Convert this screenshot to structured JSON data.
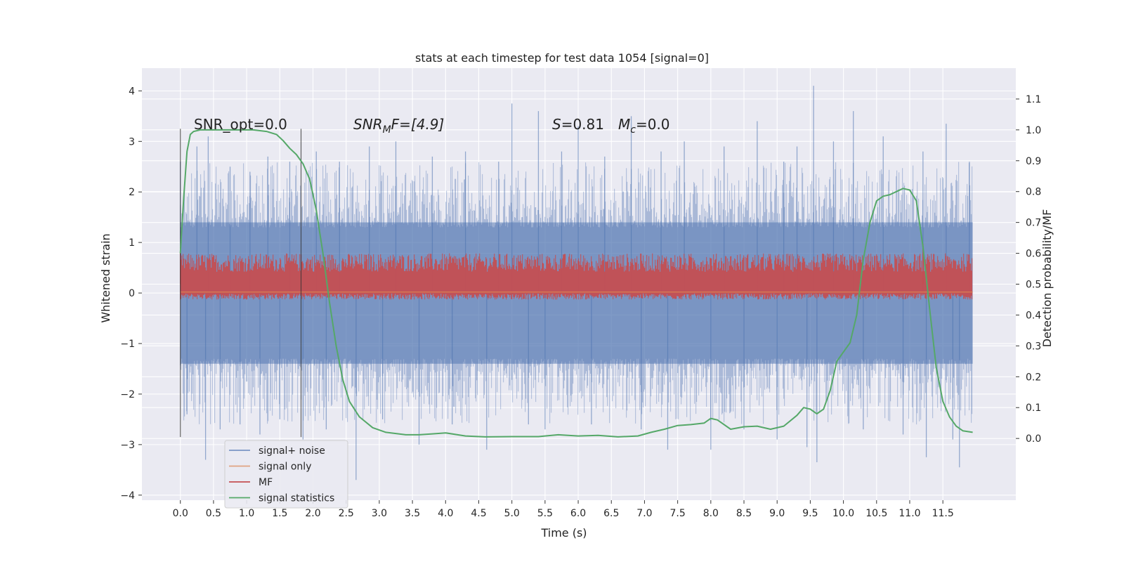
{
  "chart_data": {
    "type": "line",
    "title": "stats at each timestep for test data 1054 [signal=0]",
    "xlabel": "Time (s)",
    "ylabel": "Whitened strain",
    "ylabel_right": "Detection probability/MF",
    "xlim": [
      -0.58,
      12.6
    ],
    "ylim": [
      -4.1,
      4.45
    ],
    "ylim_right": [
      -0.2,
      1.2
    ],
    "x_ticks": [
      "0.0",
      "0.5",
      "1.0",
      "1.5",
      "2.0",
      "2.5",
      "3.0",
      "3.5",
      "4.0",
      "4.5",
      "5.0",
      "5.5",
      "6.0",
      "6.5",
      "7.0",
      "7.5",
      "8.0",
      "8.5",
      "9.0",
      "9.5",
      "10.0",
      "10.5",
      "11.0",
      "11.5"
    ],
    "y_ticks_left": [
      "−4",
      "−3",
      "−2",
      "−1",
      "0",
      "1",
      "2",
      "3",
      "4"
    ],
    "y_ticks_right": [
      "0.0",
      "0.1",
      "0.2",
      "0.3",
      "0.4",
      "0.5",
      "0.6",
      "0.7",
      "0.8",
      "0.9",
      "1.0",
      "1.1"
    ],
    "grid": true,
    "background": "#eaeaf2",
    "legend": {
      "placement": "lower-left",
      "entries": [
        {
          "label": "signal+ noise",
          "color": "#4c72b0"
        },
        {
          "label": "signal only",
          "color": "#dd8452"
        },
        {
          "label": "MF",
          "color": "#c44e52"
        },
        {
          "label": "signal statistics",
          "color": "#55a868"
        }
      ]
    },
    "annotations": {
      "snr_opt": "SNR_opt=0.0",
      "snr_mf_main": "SNR",
      "snr_mf_sub": "M",
      "snr_mf_rest": "F=[4.9]",
      "s_symbol": "S",
      "s_value": "=0.81",
      "mc_main": "M",
      "mc_sub": "c",
      "mc_value": "=0.0"
    },
    "vertical_lines_x": [
      0.0,
      1.82
    ],
    "series": [
      {
        "name": "signal+ noise",
        "color": "#4c72b0",
        "description_band": [
          -1.4,
          1.4
        ],
        "spikes": [
          [
            0.0,
            2.6
          ],
          [
            0.1,
            -2.4
          ],
          [
            0.25,
            2.9
          ],
          [
            0.38,
            -3.3
          ],
          [
            0.42,
            3.1
          ],
          [
            0.6,
            -2.7
          ],
          [
            0.75,
            2.5
          ],
          [
            0.9,
            -2.6
          ],
          [
            1.05,
            2.4
          ],
          [
            1.2,
            -2.8
          ],
          [
            1.32,
            2.7
          ],
          [
            1.5,
            -2.5
          ],
          [
            1.65,
            2.6
          ],
          [
            1.85,
            -2.9
          ],
          [
            2.05,
            2.8
          ],
          [
            2.2,
            -2.7
          ],
          [
            2.4,
            2.6
          ],
          [
            2.65,
            -3.7
          ],
          [
            2.85,
            2.9
          ],
          [
            3.05,
            -2.5
          ],
          [
            3.25,
            3.0
          ],
          [
            3.6,
            -3.0
          ],
          [
            3.8,
            2.7
          ],
          [
            4.1,
            -2.6
          ],
          [
            4.3,
            2.8
          ],
          [
            4.62,
            -3.1
          ],
          [
            4.8,
            2.6
          ],
          [
            5.0,
            3.75
          ],
          [
            5.25,
            -2.6
          ],
          [
            5.4,
            3.6
          ],
          [
            5.5,
            -2.7
          ],
          [
            5.75,
            2.8
          ],
          [
            6.0,
            3.3
          ],
          [
            6.2,
            -2.6
          ],
          [
            6.4,
            2.7
          ],
          [
            6.8,
            3.5
          ],
          [
            6.95,
            -2.7
          ],
          [
            7.25,
            2.8
          ],
          [
            7.35,
            -3.1
          ],
          [
            7.6,
            3.0
          ],
          [
            8.0,
            -3.1
          ],
          [
            8.2,
            2.9
          ],
          [
            8.5,
            -2.7
          ],
          [
            8.7,
            3.4
          ],
          [
            9.0,
            -2.9
          ],
          [
            9.1,
            2.6
          ],
          [
            9.3,
            2.9
          ],
          [
            9.45,
            -3.05
          ],
          [
            9.55,
            4.1
          ],
          [
            9.6,
            -3.35
          ],
          [
            9.85,
            3.0
          ],
          [
            10.15,
            3.6
          ],
          [
            10.3,
            -2.7
          ],
          [
            10.6,
            3.1
          ],
          [
            10.9,
            -2.8
          ],
          [
            11.2,
            2.8
          ],
          [
            11.25,
            -3.25
          ],
          [
            11.55,
            3.35
          ],
          [
            11.65,
            -2.9
          ],
          [
            11.75,
            -3.45
          ],
          [
            11.9,
            2.6
          ]
        ]
      },
      {
        "name": "signal only",
        "color": "#dd8452",
        "x": [
          0.0,
          11.95
        ],
        "y": [
          0.02,
          0.02
        ]
      },
      {
        "name": "MF",
        "color": "#c44e52",
        "band_right": [
          0.45,
          0.57
        ],
        "center_right": 0.5,
        "spikes_right": [
          [
            0.0,
            0.62
          ],
          [
            11.2,
            0.63
          ]
        ]
      },
      {
        "name": "signal statistics",
        "color": "#55a868",
        "x": [
          0.0,
          0.05,
          0.1,
          0.15,
          0.2,
          0.3,
          0.5,
          0.8,
          1.1,
          1.3,
          1.45,
          1.55,
          1.65,
          1.75,
          1.85,
          1.95,
          2.05,
          2.15,
          2.25,
          2.35,
          2.45,
          2.55,
          2.7,
          2.9,
          3.1,
          3.4,
          3.6,
          3.8,
          4.0,
          4.3,
          4.6,
          5.0,
          5.4,
          5.7,
          6.0,
          6.3,
          6.6,
          6.9,
          7.1,
          7.3,
          7.5,
          7.7,
          7.9,
          8.0,
          8.1,
          8.3,
          8.5,
          8.7,
          8.9,
          9.1,
          9.3,
          9.4,
          9.5,
          9.6,
          9.7,
          9.8,
          9.9,
          10.0,
          10.1,
          10.2,
          10.3,
          10.4,
          10.5,
          10.6,
          10.7,
          10.8,
          10.9,
          11.0,
          11.1,
          11.2,
          11.3,
          11.4,
          11.5,
          11.6,
          11.7,
          11.8,
          11.95
        ],
        "y": [
          0.6,
          0.78,
          0.93,
          0.985,
          0.995,
          1.0,
          1.0,
          1.0,
          1.0,
          0.995,
          0.985,
          0.965,
          0.94,
          0.92,
          0.89,
          0.84,
          0.74,
          0.6,
          0.44,
          0.3,
          0.19,
          0.12,
          0.07,
          0.035,
          0.02,
          0.012,
          0.012,
          0.015,
          0.018,
          0.008,
          0.005,
          0.006,
          0.006,
          0.012,
          0.008,
          0.01,
          0.005,
          0.008,
          0.02,
          0.03,
          0.042,
          0.045,
          0.05,
          0.065,
          0.06,
          0.03,
          0.038,
          0.04,
          0.03,
          0.04,
          0.075,
          0.1,
          0.095,
          0.08,
          0.095,
          0.155,
          0.25,
          0.28,
          0.31,
          0.4,
          0.58,
          0.7,
          0.77,
          0.785,
          0.79,
          0.8,
          0.81,
          0.805,
          0.77,
          0.62,
          0.42,
          0.23,
          0.12,
          0.07,
          0.04,
          0.025,
          0.02
        ]
      }
    ]
  }
}
